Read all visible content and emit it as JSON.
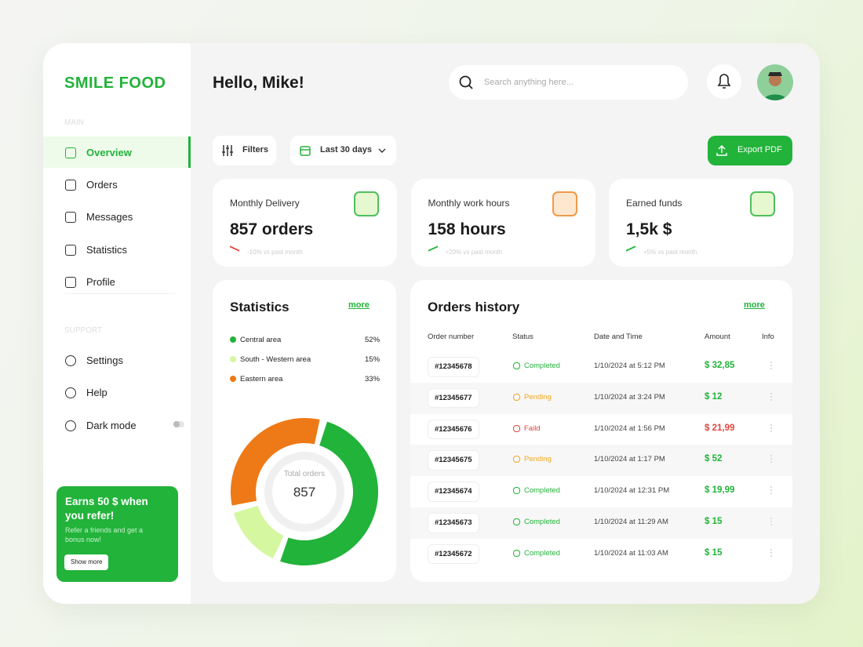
{
  "brand": "SMILE FOOD",
  "sidebar": {
    "main_heading": "MAIN",
    "main_items": [
      "Overview",
      "Orders",
      "Messages",
      "Statistics",
      "Profile"
    ],
    "support_heading": "SUPPORT",
    "support_items": [
      "Settings",
      "Help",
      "Dark mode"
    ],
    "promo": {
      "title": "Earns 50 $ when you refer!",
      "text": "Refer a friends and get a bonus now!",
      "button": "Show more"
    }
  },
  "header": {
    "greeting": "Hello, Mike!",
    "search_placeholder": "Search anything here..."
  },
  "toolbar": {
    "filters": "Filters",
    "period": "Last 30 days",
    "export": "Export PDF"
  },
  "kpis": [
    {
      "title": "Monthly Delivery",
      "value": "857 orders",
      "trend": "-10% vs past month",
      "trend_color": "#e0463c"
    },
    {
      "title": "Monthly work hours",
      "value": "158 hours",
      "trend": "+20% vs past month",
      "trend_color": "#22b33a"
    },
    {
      "title": "Earned funds",
      "value": "1,5k $",
      "trend": "+5% vs past month",
      "trend_color": "#22b33a"
    }
  ],
  "statistics": {
    "title": "Statistics",
    "more": "more",
    "names": [
      "Central area",
      "South - Western area",
      "Eastern area"
    ],
    "values": [
      52,
      15,
      33
    ],
    "value_labels": [
      "52%",
      "15%",
      "33%"
    ],
    "colors": [
      "#22b33a",
      "#d4f7a0",
      "#ee7a17"
    ],
    "center_label": "Total orders",
    "center_value": "857"
  },
  "orders": {
    "title": "Orders history",
    "more": "more",
    "columns": [
      "Order number",
      "Status",
      "Date and Time",
      "Amount",
      "Info"
    ],
    "rows": [
      {
        "order": "#12345678",
        "status": "Completed",
        "status_color": "#22b33a",
        "date": "1/10/2024 at 5:12 PM",
        "amount": "$ 32,85",
        "amount_color": "#22b33a"
      },
      {
        "order": "#12345677",
        "status": "Pending",
        "status_color": "#f0a81c",
        "date": "1/10/2024 at 3:24 PM",
        "amount": "$ 12",
        "amount_color": "#22b33a"
      },
      {
        "order": "#12345676",
        "status": "Faild",
        "status_color": "#e0463c",
        "date": "1/10/2024 at 1:56 PM",
        "amount": "$ 21,99",
        "amount_color": "#e0463c"
      },
      {
        "order": "#12345675",
        "status": "Pending",
        "status_color": "#f0a81c",
        "date": "1/10/2024 at 1:17 PM",
        "amount": "$ 52",
        "amount_color": "#22b33a"
      },
      {
        "order": "#12345674",
        "status": "Completed",
        "status_color": "#22b33a",
        "date": "1/10/2024 at 12:31 PM",
        "amount": "$ 19,99",
        "amount_color": "#22b33a"
      },
      {
        "order": "#12345673",
        "status": "Completed",
        "status_color": "#22b33a",
        "date": "1/10/2024 at 11:29 AM",
        "amount": "$ 15",
        "amount_color": "#22b33a"
      },
      {
        "order": "#12345672",
        "status": "Completed",
        "status_color": "#22b33a",
        "date": "1/10/2024 at 11:03 AM",
        "amount": "$ 15",
        "amount_color": "#22b33a"
      }
    ]
  }
}
